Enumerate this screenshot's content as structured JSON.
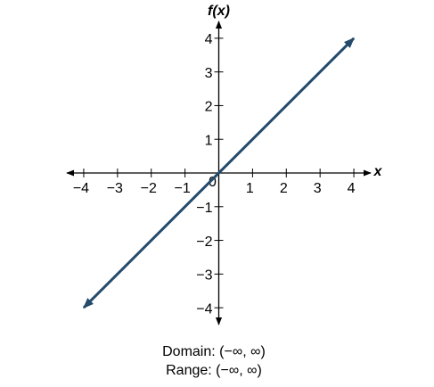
{
  "chart_data": {
    "type": "line",
    "y_label": "f(x)",
    "x_label": "x",
    "x": [
      -4,
      4
    ],
    "series": [
      {
        "color": "#244a6c",
        "values": [
          -4,
          4
        ]
      }
    ],
    "xlim": [
      -4.5,
      4.5
    ],
    "ylim": [
      -4.5,
      4.5
    ],
    "xticks": [
      {
        "value": -4,
        "label": "−4"
      },
      {
        "value": -3,
        "label": "−3"
      },
      {
        "value": -2,
        "label": "−2"
      },
      {
        "value": -1,
        "label": "−1"
      },
      0,
      1,
      2,
      3,
      4
    ],
    "yticks": [
      {
        "value": -4,
        "label": "−4"
      },
      {
        "value": -3,
        "label": "−3"
      },
      {
        "value": -2,
        "label": "−2"
      },
      {
        "value": -1,
        "label": "−1"
      },
      1,
      2,
      3,
      4
    ],
    "annotations": [
      "Domain: (−∞, ∞)",
      "Range: (−∞, ∞)"
    ]
  }
}
